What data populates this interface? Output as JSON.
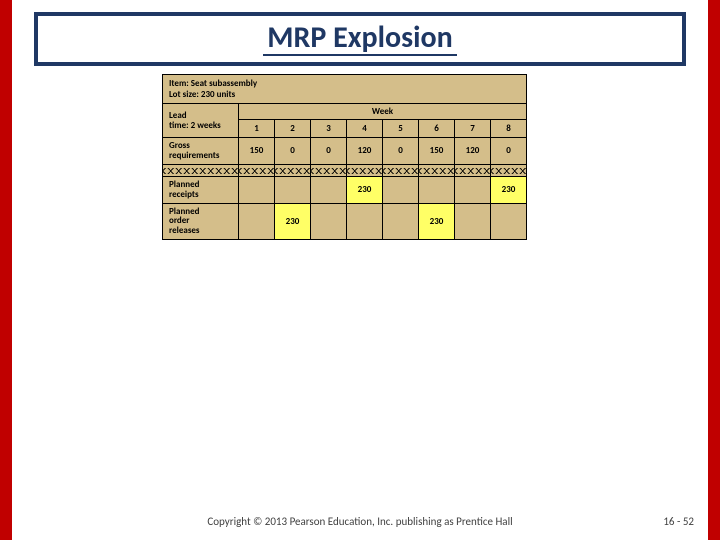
{
  "title": "MRP Explosion",
  "item_line1": "Item: Seat subassembly",
  "item_line2": "Lot size: 230 units",
  "lead_line1": "Lead",
  "lead_line2": "time: 2 weeks",
  "week_header": "Week",
  "weeks": [
    "1",
    "2",
    "3",
    "4",
    "5",
    "6",
    "7",
    "8"
  ],
  "rows": {
    "gross": {
      "label": "Gross\nrequirements",
      "cells": [
        "150",
        "0",
        "0",
        "120",
        "0",
        "150",
        "120",
        "0"
      ]
    },
    "planned": {
      "label": "Planned\nreceipts",
      "cells": [
        "",
        "",
        "",
        "",
        "",
        "",
        "",
        ""
      ],
      "highlights": {
        "3": "230",
        "7": "230"
      }
    },
    "releases": {
      "label": "Planned\norder\nreleases",
      "cells": [
        "",
        "",
        "",
        "",
        "",
        "",
        "",
        ""
      ],
      "highlights": {
        "1": "230",
        "5": "230"
      }
    }
  },
  "colors": {
    "red": "#c00000",
    "navy": "#1f3864",
    "tableBg": "#d4be8a",
    "highlight": "#ffff66"
  },
  "footer": "Copyright © 2013 Pearson Education, Inc. publishing as Prentice Hall",
  "page": "16 - 52"
}
